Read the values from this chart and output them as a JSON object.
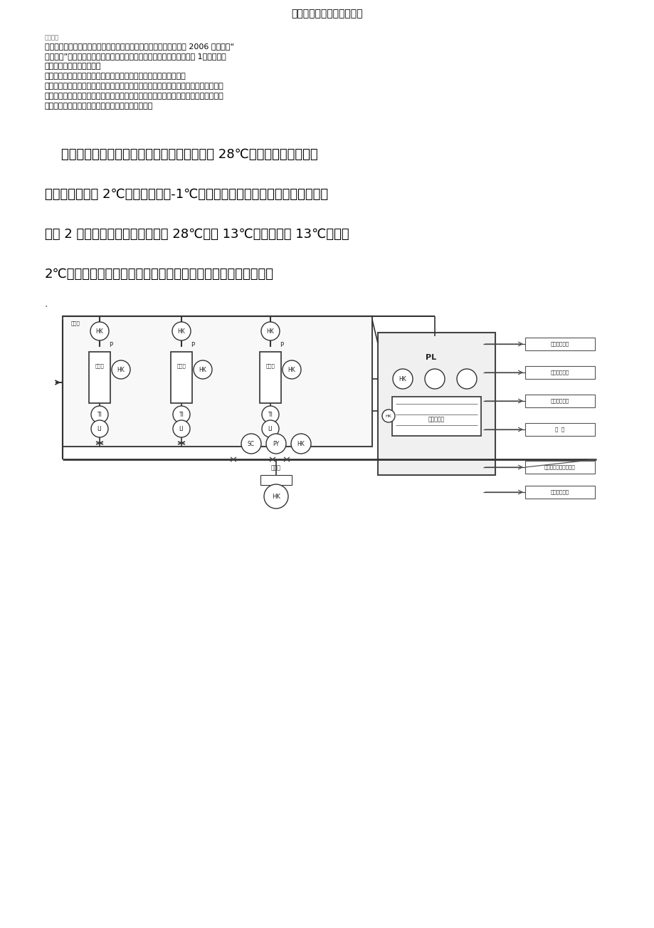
{
  "title": "制冷系统节能技术实行措施",
  "bg_color": "#ffffff",
  "small_label": "精选文档",
  "p1_lines": [
    "正式把冰水蓄冷项目设计到图纸上并注明操作规程，同年发布论文在 2006 年第三期“",
    "啊酒科技”全国性刷物上，运转多年来成效明显并获取广泛好评。见附图 1：二、冰水",
    "和脱氧水系统双级冷却技术",
    "冰水、脱氧水双级冷却技术是最近几年来我院要点推行的节能新技术",
    "蒸发压力越低下所消耗的单位：在条件稳定的蒸发过程中，在径缩压力稳固的状况下，",
    "蒸发压力越低，可以获取更大的制冷量到制冷效量。所以在保证工艺冷却能力不变的状",
    "况下，合适提升蒸发温度即可以获取更多的制冷量。"
  ],
  "p2_lines": [
    "    啊酒厂制备冰水、脱氧水的传统工艺方案是把 28℃左右的醑造水和脱氧",
    "",
    "水一次性冷却到 2℃，蒸发温度在-1℃左右。双级冷倒是做法是把这一过程分",
    "",
    "解成 2 级冷却进行，第一级冷却从 28℃降到 13℃，第二级从 13℃冷却到",
    "",
    "2℃，这样就把一部分的蒸发工作放到了高工况下进行，另一部分"
  ],
  "label_sheng_qi": "蒸气缸冷却水",
  "label_an_ye": "氨液罐冷却水",
  "label_tuo_yang": "脱氧罐冷却水",
  "label_zhi_leng": "制  冷",
  "label_leng_zao": "醑造水冷冻罐醑造水泵",
  "label_shui_qu": "冷水去冷管房",
  "label_ban_shi": "板式换热器",
  "label_bu_shui": "补水泵",
  "label_PL": "PL",
  "label_TI": "TI",
  "label_LI": "LI",
  "label_HK": "HK",
  "label_SC": "SC",
  "label_PY": "PY",
  "label_P": "P",
  "col_vessel_labels": [
    "冰水罐",
    "冰水罐",
    "冰水罐"
  ]
}
